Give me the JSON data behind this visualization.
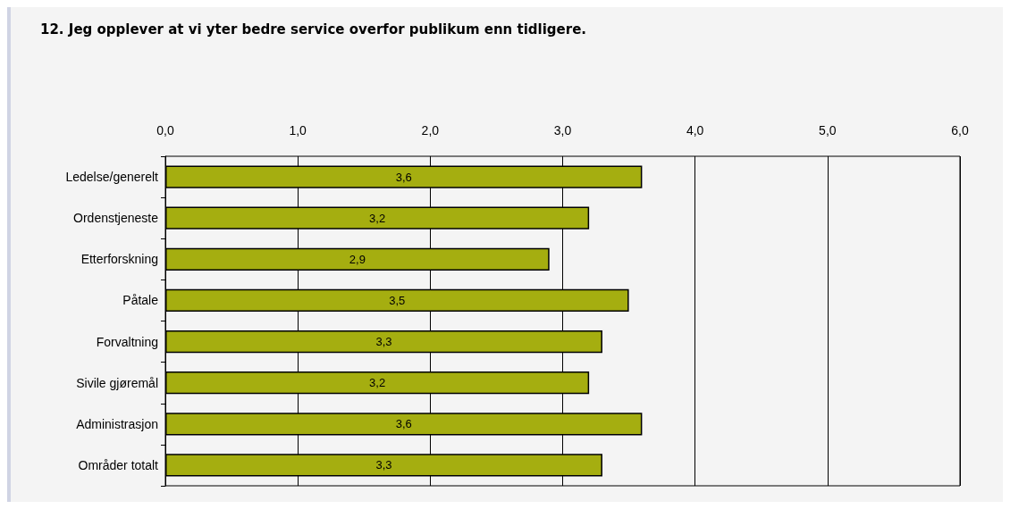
{
  "chart_data": {
    "type": "bar",
    "orientation": "horizontal",
    "title": "12. Jeg opplever at vi yter bedre service overfor publikum enn tidligere.",
    "categories": [
      "Ledelse/generelt",
      "Ordenstjeneste",
      "Etterforskning",
      "Påtale",
      "Forvaltning",
      "Sivile gjøremål",
      "Administrasjon",
      "Områder totalt"
    ],
    "values": [
      3.6,
      3.2,
      2.9,
      3.5,
      3.3,
      3.2,
      3.6,
      3.3
    ],
    "value_labels": [
      "3,6",
      "3,2",
      "2,9",
      "3,5",
      "3,3",
      "3,2",
      "3,6",
      "3,3"
    ],
    "color": "#a5ae10",
    "xlim": [
      0,
      6
    ],
    "xticks": [
      {
        "value": 0,
        "label": "0,0"
      },
      {
        "value": 1,
        "label": "1,0"
      },
      {
        "value": 2,
        "label": "2,0"
      },
      {
        "value": 3,
        "label": "3,0"
      },
      {
        "value": 4,
        "label": "4,0"
      },
      {
        "value": 5,
        "label": "5,0"
      },
      {
        "value": 6,
        "label": "6,0"
      }
    ],
    "grid": "x"
  }
}
